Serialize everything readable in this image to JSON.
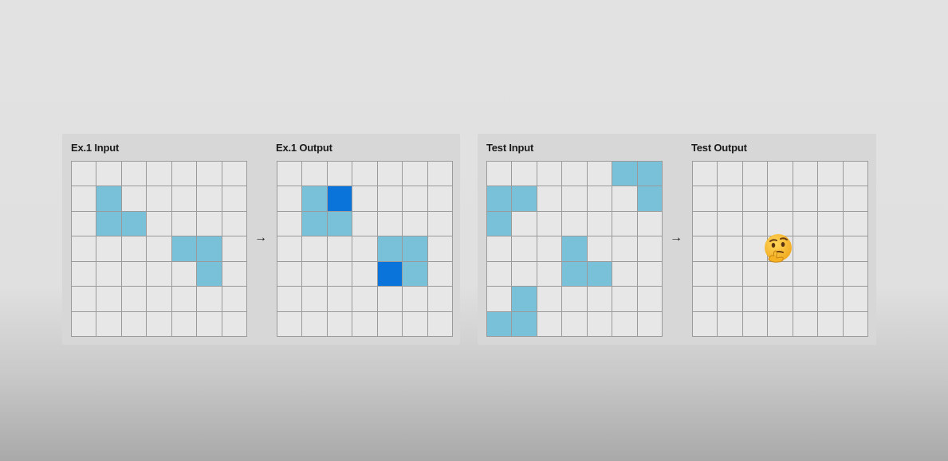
{
  "panels": [
    {
      "input_label": "Ex.1 Input",
      "output_label": "Ex.1 Output",
      "arrow": "→",
      "input_grid": [
        [
          0,
          0,
          0,
          0,
          0,
          0,
          0
        ],
        [
          0,
          1,
          0,
          0,
          0,
          0,
          0
        ],
        [
          0,
          1,
          1,
          0,
          0,
          0,
          0
        ],
        [
          0,
          0,
          0,
          0,
          1,
          1,
          0
        ],
        [
          0,
          0,
          0,
          0,
          0,
          1,
          0
        ],
        [
          0,
          0,
          0,
          0,
          0,
          0,
          0
        ],
        [
          0,
          0,
          0,
          0,
          0,
          0,
          0
        ]
      ],
      "output_grid": [
        [
          0,
          0,
          0,
          0,
          0,
          0,
          0
        ],
        [
          0,
          1,
          2,
          0,
          0,
          0,
          0
        ],
        [
          0,
          1,
          1,
          0,
          0,
          0,
          0
        ],
        [
          0,
          0,
          0,
          0,
          1,
          1,
          0
        ],
        [
          0,
          0,
          0,
          0,
          2,
          1,
          0
        ],
        [
          0,
          0,
          0,
          0,
          0,
          0,
          0
        ],
        [
          0,
          0,
          0,
          0,
          0,
          0,
          0
        ]
      ]
    },
    {
      "input_label": "Test Input",
      "output_label": "Test Output",
      "arrow": "→",
      "input_grid": [
        [
          0,
          0,
          0,
          0,
          0,
          1,
          1
        ],
        [
          1,
          1,
          0,
          0,
          0,
          0,
          1
        ],
        [
          1,
          0,
          0,
          0,
          0,
          0,
          0
        ],
        [
          0,
          0,
          0,
          1,
          0,
          0,
          0
        ],
        [
          0,
          0,
          0,
          1,
          1,
          0,
          0
        ],
        [
          0,
          1,
          0,
          0,
          0,
          0,
          0
        ],
        [
          1,
          1,
          0,
          0,
          0,
          0,
          0
        ]
      ],
      "output_grid": [
        [
          0,
          0,
          0,
          0,
          0,
          0,
          0
        ],
        [
          0,
          0,
          0,
          0,
          0,
          0,
          0
        ],
        [
          0,
          0,
          0,
          0,
          0,
          0,
          0
        ],
        [
          0,
          0,
          0,
          0,
          0,
          0,
          0
        ],
        [
          0,
          0,
          0,
          0,
          0,
          0,
          0
        ],
        [
          0,
          0,
          0,
          0,
          0,
          0,
          0
        ],
        [
          0,
          0,
          0,
          0,
          0,
          0,
          0
        ]
      ],
      "output_placeholder_icon": "thinking-face-icon"
    }
  ],
  "colors": {
    "empty": "#e7e7e7",
    "light_blue": "#78c1d9",
    "dark_blue": "#0b74da",
    "grid_line": "#9a9a9a"
  }
}
